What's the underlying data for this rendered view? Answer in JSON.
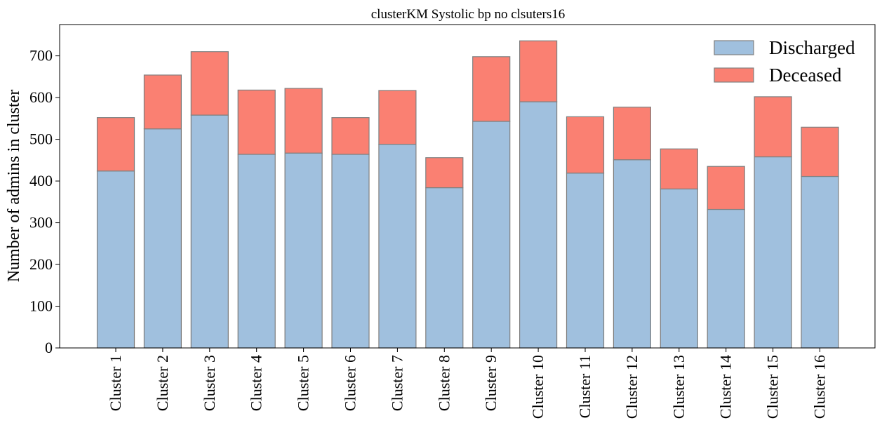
{
  "chart_data": {
    "type": "bar",
    "stacked": true,
    "title": "clusterKM Systolic bp no clsuters16",
    "xlabel": "",
    "ylabel": "Number of admins in cluster",
    "categories": [
      "Cluster 1",
      "Cluster 2",
      "Cluster 3",
      "Cluster 4",
      "Cluster 5",
      "Cluster 6",
      "Cluster 7",
      "Cluster 8",
      "Cluster 9",
      "Cluster 10",
      "Cluster 11",
      "Cluster 12",
      "Cluster 13",
      "Cluster 14",
      "Cluster 15",
      "Cluster 16"
    ],
    "series": [
      {
        "name": "Discharged",
        "color": "#a0c0de",
        "values": [
          424,
          525,
          558,
          464,
          467,
          464,
          488,
          384,
          543,
          590,
          419,
          451,
          381,
          332,
          458,
          411
        ]
      },
      {
        "name": "Deceased",
        "color": "#fa8072",
        "values": [
          128,
          129,
          152,
          154,
          155,
          88,
          129,
          72,
          155,
          146,
          135,
          126,
          96,
          103,
          144,
          118
        ]
      }
    ],
    "yticks": [
      0,
      100,
      200,
      300,
      400,
      500,
      600,
      700
    ],
    "ylim": [
      0,
      775
    ],
    "legend_position": "upper-right",
    "grid": false
  }
}
